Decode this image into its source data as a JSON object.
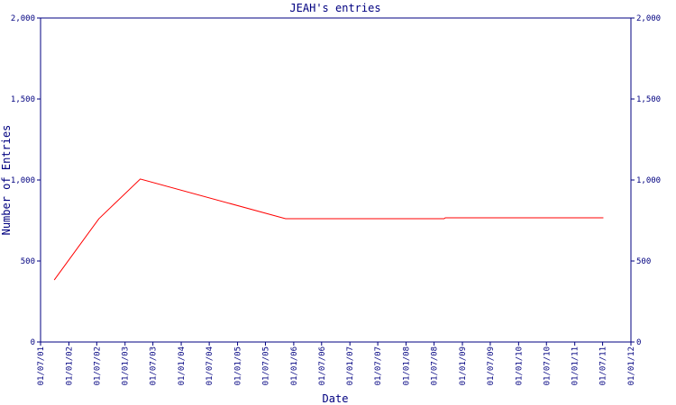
{
  "chart_data": {
    "type": "line",
    "title": "JEAH's entries",
    "x_label": "Date",
    "y_label": "Number of Entries",
    "x": [
      "2001-09-28",
      "2002-07-15",
      "2003-04-10",
      "2005-11-09",
      "2008-09-04",
      "2008-09-12",
      "2011-07-06"
    ],
    "series": [
      {
        "name": "JEAH",
        "color": "#ff0000",
        "values": [
          383,
          761,
          1006,
          761,
          761,
          767,
          767
        ]
      }
    ],
    "xlim": [
      "2001-07-01",
      "2012-01-01"
    ],
    "xticks": [
      {
        "value": "2001-07-01",
        "label": "01/07/01"
      },
      {
        "value": "2002-01-01",
        "label": "01/01/02"
      },
      {
        "value": "2002-07-01",
        "label": "01/07/02"
      },
      {
        "value": "2003-01-01",
        "label": "01/01/03"
      },
      {
        "value": "2003-07-01",
        "label": "01/07/03"
      },
      {
        "value": "2004-01-01",
        "label": "01/01/04"
      },
      {
        "value": "2004-07-01",
        "label": "01/07/04"
      },
      {
        "value": "2005-01-01",
        "label": "01/01/05"
      },
      {
        "value": "2005-07-01",
        "label": "01/07/05"
      },
      {
        "value": "2006-01-01",
        "label": "01/01/06"
      },
      {
        "value": "2006-07-01",
        "label": "01/07/06"
      },
      {
        "value": "2007-01-01",
        "label": "01/01/07"
      },
      {
        "value": "2007-07-01",
        "label": "01/07/07"
      },
      {
        "value": "2008-01-01",
        "label": "01/01/08"
      },
      {
        "value": "2008-07-01",
        "label": "01/07/08"
      },
      {
        "value": "2009-01-01",
        "label": "01/01/09"
      },
      {
        "value": "2009-07-01",
        "label": "01/07/09"
      },
      {
        "value": "2010-01-01",
        "label": "01/01/10"
      },
      {
        "value": "2010-07-01",
        "label": "01/07/10"
      },
      {
        "value": "2011-01-01",
        "label": "01/01/11"
      },
      {
        "value": "2011-07-01",
        "label": "01/07/11"
      },
      {
        "value": "2012-01-01",
        "label": "01/01/12"
      }
    ],
    "ylim": [
      0,
      2000
    ],
    "yticks": [
      0,
      500,
      {
        "value": 1000,
        "label": "1,000"
      },
      {
        "value": 1500,
        "label": "1,500"
      },
      {
        "value": 2000,
        "label": "2,000"
      }
    ],
    "grid": false,
    "axis_color": "#000080"
  }
}
